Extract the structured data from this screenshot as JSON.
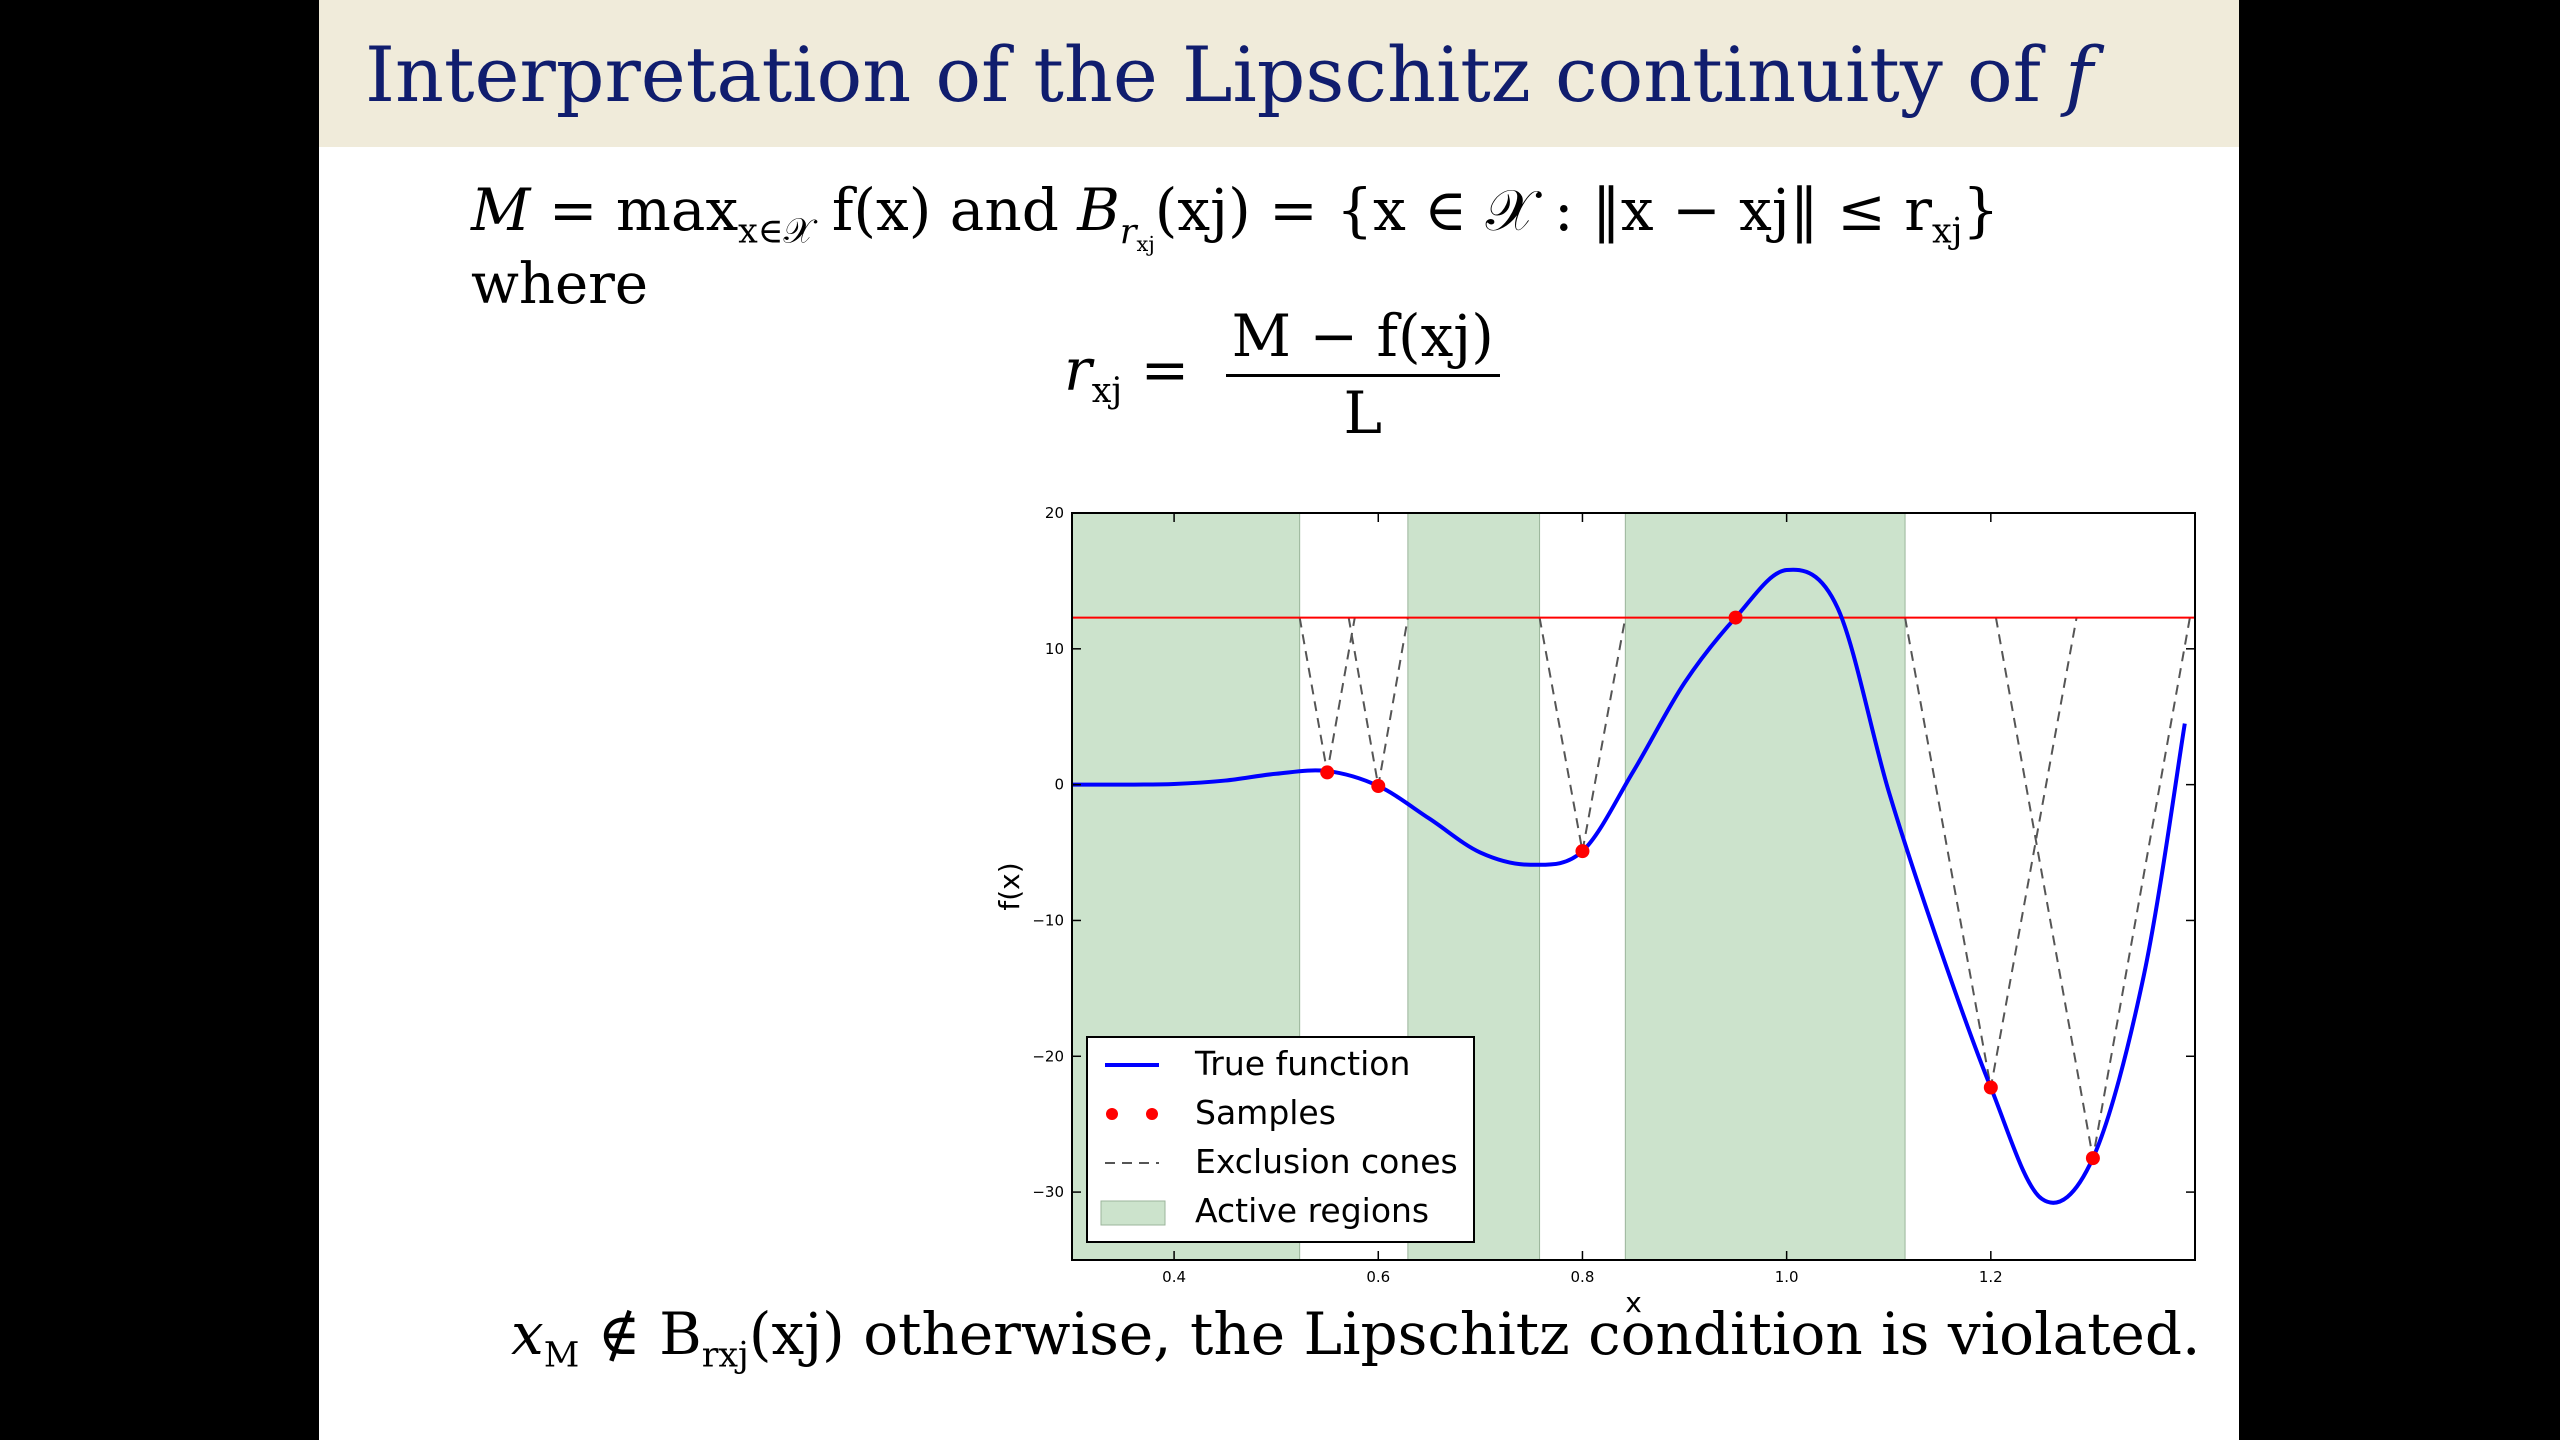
{
  "slide": {
    "title": "Interpretation of the Lipschitz continuity of",
    "title_symbol": "f",
    "eq1": {
      "M": "M",
      "eq": " = max",
      "max_sub": "x∈𝒳",
      "f": " f(x)",
      "and": " and ",
      "B": "B",
      "B_sub": "r",
      "B_subsub": "xj",
      "B_arg": "(xj) = {x ∈ 𝒳 : ‖x − xj‖ ≤ r",
      "r_sub": "xj",
      "close": "}"
    },
    "where": "where",
    "eq2": {
      "lhs": "r",
      "lhs_sub": "xj",
      "eq": " = ",
      "numerator": "M − f(xj)",
      "denominator": "L"
    },
    "footer": {
      "x": "x",
      "x_sub": "M",
      "notin": " ∉ B",
      "B_sub": "rxj",
      "rest": "(xj) otherwise, the Lipschitz condition is violated."
    }
  },
  "chart_data": {
    "type": "line",
    "xlabel": "x",
    "ylabel": "f(x)",
    "xlim": [
      0.3,
      1.4
    ],
    "ylim": [
      -35,
      20
    ],
    "xticks": [
      0.4,
      0.6,
      0.8,
      1.0,
      1.2
    ],
    "yticks": [
      20,
      10,
      0,
      -10,
      -20,
      -30
    ],
    "xtick_labels": [
      "0.4",
      "0.6",
      "0.8",
      "1.0",
      "1.2"
    ],
    "ytick_labels": [
      "20",
      "10",
      "0",
      "−10",
      "−20",
      "−30"
    ],
    "true_function": {
      "name": "True function",
      "color": "#0000ff",
      "x": [
        0.3,
        0.35,
        0.4,
        0.45,
        0.5,
        0.55,
        0.6,
        0.65,
        0.7,
        0.75,
        0.8,
        0.85,
        0.9,
        0.95,
        1.0,
        1.05,
        1.1,
        1.15,
        1.2,
        1.25,
        1.3,
        1.35,
        1.39
      ],
      "y": [
        0.0,
        0.0,
        0.05,
        0.3,
        0.8,
        1.0,
        -0.1,
        -2.5,
        -5.0,
        -5.9,
        -4.9,
        1.0,
        7.5,
        12.3,
        15.8,
        13.0,
        -0.5,
        -12.0,
        -22.3,
        -30.5,
        -27.5,
        -14.0,
        4.5
      ]
    },
    "samples": {
      "name": "Samples",
      "color": "#ff0000",
      "x": [
        0.55,
        0.6,
        0.8,
        0.95,
        1.2,
        1.3
      ],
      "y": [
        0.9,
        -0.1,
        -4.9,
        12.3,
        -22.3,
        -27.5
      ]
    },
    "max_line": {
      "y": 12.3,
      "color": "#ff0000"
    },
    "exclusion_cones": {
      "name": "Exclusion cones",
      "color": "#555555",
      "segments": [
        [
          [
            0.523,
            12.3
          ],
          [
            0.55,
            0.9
          ],
          [
            0.577,
            12.3
          ]
        ],
        [
          [
            0.571,
            12.3
          ],
          [
            0.6,
            -0.1
          ],
          [
            0.629,
            12.3
          ]
        ],
        [
          [
            0.758,
            12.3
          ],
          [
            0.8,
            -4.9
          ],
          [
            0.842,
            12.3
          ]
        ],
        [
          [
            1.116,
            12.3
          ],
          [
            1.2,
            -22.3
          ],
          [
            1.284,
            12.3
          ]
        ],
        [
          [
            1.205,
            12.3
          ],
          [
            1.3,
            -27.5
          ],
          [
            1.395,
            12.3
          ]
        ]
      ]
    },
    "active_regions": {
      "name": "Active regions",
      "color": "#cce3cc",
      "intervals": [
        [
          0.3,
          0.523
        ],
        [
          0.629,
          0.758
        ],
        [
          0.842,
          1.116
        ]
      ]
    },
    "legend": {
      "position": "lower-left",
      "entries": [
        "True function",
        "Samples",
        "Exclusion cones",
        "Active regions"
      ]
    }
  }
}
